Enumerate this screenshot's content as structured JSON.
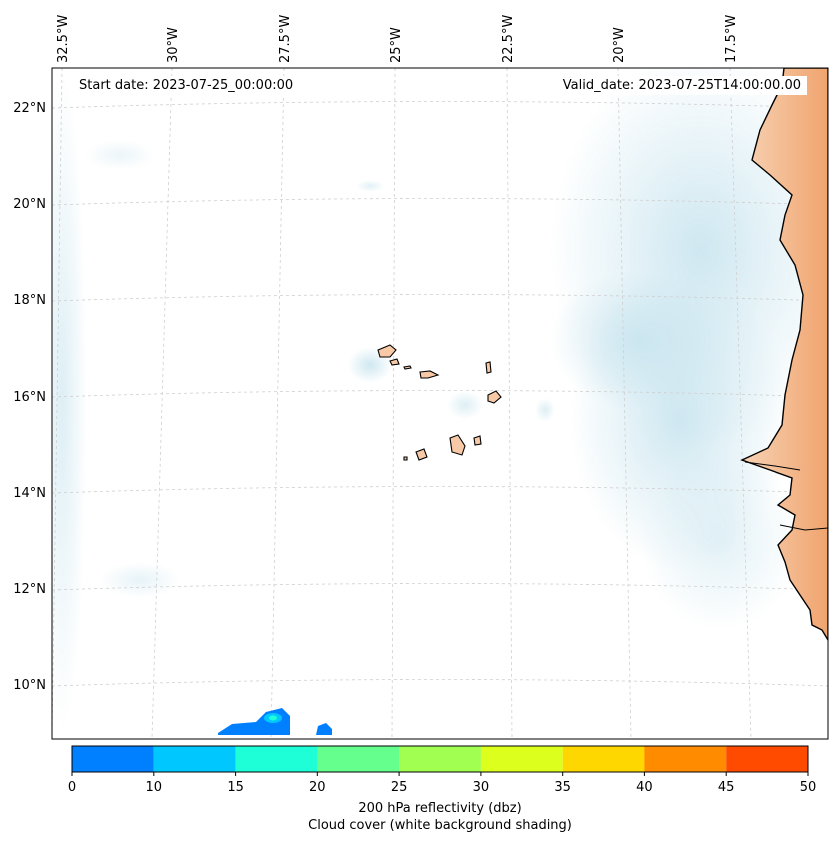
{
  "map": {
    "lon_labels": [
      "32.5°W",
      "30°W",
      "27.5°W",
      "25°W",
      "22.5°W",
      "20°W",
      "17.5°W"
    ],
    "lat_labels": [
      "22°N",
      "20°N",
      "18°N",
      "16°N",
      "14°N",
      "12°N",
      "10°N"
    ],
    "start_date": "Start date: 2023-07-25_00:00:00",
    "valid_date": "Valid_date: 2023-07-25T14:00:00.00",
    "colors": {
      "land": "#f7c9a6",
      "land_dark": "#f2a06b",
      "cloud": "#cde8f0",
      "coast": "#000000",
      "grid": "#c8c8c8"
    }
  },
  "colorbar": {
    "ticks": [
      "0",
      "10",
      "15",
      "20",
      "25",
      "30",
      "35",
      "40",
      "45",
      "50"
    ],
    "colors": [
      "#0080ff",
      "#00c8ff",
      "#1effd8",
      "#64ff8c",
      "#a0ff50",
      "#dcff1e",
      "#ffd700",
      "#ff8c00",
      "#ff4b00"
    ],
    "label_line1": "200 hPa reflectivity (dbz)",
    "label_line2": "Cloud cover (white background shading)"
  }
}
